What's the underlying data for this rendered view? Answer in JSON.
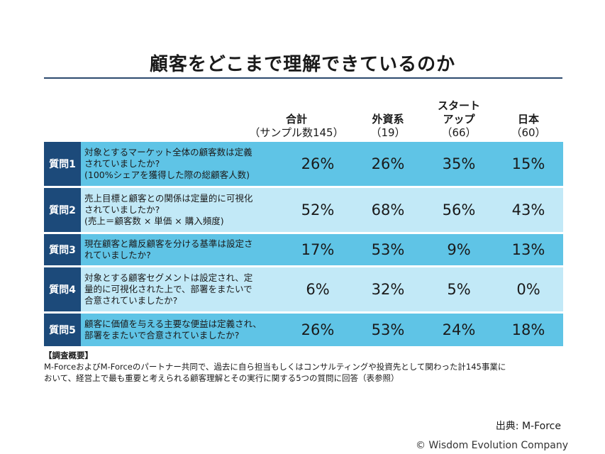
{
  "title": "顧客をどこまで理解できているのか",
  "chart_data": {
    "type": "table",
    "columns": [
      {
        "name": "合計",
        "sub": "（サンプル数145）"
      },
      {
        "name": "外資系",
        "sub": "（19）"
      },
      {
        "name": "スタート\nアップ",
        "sub": "（66）"
      },
      {
        "name": "日本",
        "sub": "（60）"
      }
    ],
    "rows": [
      {
        "label": "質問1",
        "question": "対象とするマーケット全体の顧客数は定義\nされていましたか?\n(100%シェアを獲得した際の総顧客人数)",
        "values": [
          "26%",
          "26%",
          "35%",
          "15%"
        ]
      },
      {
        "label": "質問2",
        "question": "売上目標と顧客との関係は定量的に可視化\nされていましたか?\n(売上＝顧客数 × 単価 × 購入頻度)",
        "values": [
          "52%",
          "68%",
          "56%",
          "43%"
        ]
      },
      {
        "label": "質問3",
        "question": "現在顧客と離反顧客を分ける基準は設定さ\nれていましたか?",
        "values": [
          "17%",
          "53%",
          "9%",
          "13%"
        ]
      },
      {
        "label": "質問4",
        "question": "対象とする顧客セグメントは設定され、定\n量的に可視化された上で、部署をまたいで\n合意されていましたか?",
        "values": [
          "6%",
          "32%",
          "5%",
          "0%"
        ]
      },
      {
        "label": "質問5",
        "question": "顧客に価値を与える主要な便益は定義され、\n部署をまたいで合意されていましたか?",
        "values": [
          "26%",
          "53%",
          "24%",
          "18%"
        ]
      }
    ],
    "row_colors": [
      "#5fc4e6",
      "#c2e9f7"
    ],
    "label_color": "#1c4a7a"
  },
  "notes": {
    "heading": "【調査概要】",
    "text": "M-ForceおよびM-Forceのパートナー共同で、過去に自ら担当もしくはコンサルティングや投資先として関わった計145事業に\nおいて、経営上で最も重要と考えられる顧客理解とその実行に関する5つの質問に回答（表参照）"
  },
  "source": "出典: M-Force",
  "copyright": "© Wisdom Evolution Company"
}
